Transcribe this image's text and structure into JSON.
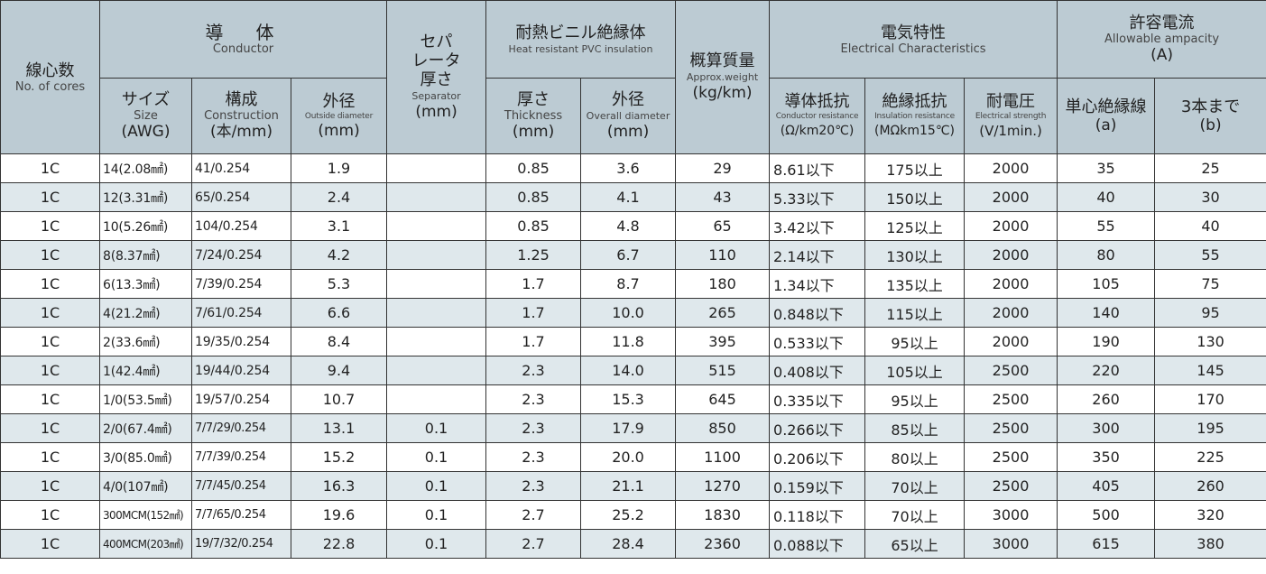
{
  "headers": {
    "cores_jp": "線心数",
    "cores_en": "No. of cores",
    "conductor_jp": "導　体",
    "conductor_en": "Conductor",
    "size_jp": "サイズ",
    "size_en": "Size",
    "size_unit": "(AWG)",
    "construction_jp": "構成",
    "construction_en": "Construction",
    "construction_unit": "(本/mm)",
    "outside_diameter_jp": "外径",
    "outside_diameter_en": "Outside diameter",
    "outside_diameter_unit": "(mm)",
    "separator_jp_1": "セパ",
    "separator_jp_2": "レータ",
    "separator_jp_3": "厚さ",
    "separator_en": "Separator",
    "separator_unit": "(mm)",
    "insulation_jp": "耐熱ビニル絶縁体",
    "insulation_en": "Heat resistant PVC insulation",
    "thickness_jp": "厚さ",
    "thickness_en": "Thickness",
    "thickness_unit": "(mm)",
    "overall_diameter_jp": "外径",
    "overall_diameter_en": "Overall diameter",
    "overall_diameter_unit": "(mm)",
    "weight_jp": "概算質量",
    "weight_en": "Approx.weight",
    "weight_unit": "(kg/km)",
    "electrical_jp": "電気特性",
    "electrical_en": "Electrical Characteristics",
    "cond_res_jp": "導体抵抗",
    "cond_res_en": "Conductor resistance",
    "cond_res_unit": "(Ω/km20℃)",
    "ins_res_jp": "絶縁抵抗",
    "ins_res_en": "Insulation resistance",
    "ins_res_unit": "(MΩkm15℃)",
    "strength_jp": "耐電圧",
    "strength_en": "Electrical strength",
    "strength_unit": "(V/1min.)",
    "ampacity_jp": "許容電流",
    "ampacity_en": "Allowable ampacity",
    "ampacity_unit": "(A)",
    "single_jp": "単心絶縁線",
    "single_unit": "(a)",
    "upto3_jp": "3本まで",
    "upto3_unit": "(b)"
  },
  "rows": [
    {
      "cores": "1C",
      "size": "14(2.08㎟)",
      "construction": "41/0.254",
      "od": "1.9",
      "separator": "",
      "thickness": "0.85",
      "overall": "3.6",
      "weight": "29",
      "cond_res": "8.61以下",
      "ins_res": "175以上",
      "strength": "2000",
      "amp_a": "35",
      "amp_b": "25"
    },
    {
      "cores": "1C",
      "size": "12(3.31㎟)",
      "construction": "65/0.254",
      "od": "2.4",
      "separator": "",
      "thickness": "0.85",
      "overall": "4.1",
      "weight": "43",
      "cond_res": "5.33以下",
      "ins_res": "150以上",
      "strength": "2000",
      "amp_a": "40",
      "amp_b": "30"
    },
    {
      "cores": "1C",
      "size": "10(5.26㎟)",
      "construction": "104/0.254",
      "od": "3.1",
      "separator": "",
      "thickness": "0.85",
      "overall": "4.8",
      "weight": "65",
      "cond_res": "3.42以下",
      "ins_res": "125以上",
      "strength": "2000",
      "amp_a": "55",
      "amp_b": "40"
    },
    {
      "cores": "1C",
      "size": "8(8.37㎟)",
      "construction": "7/24/0.254",
      "od": "4.2",
      "separator": "",
      "thickness": "1.25",
      "overall": "6.7",
      "weight": "110",
      "cond_res": "2.14以下",
      "ins_res": "130以上",
      "strength": "2000",
      "amp_a": "80",
      "amp_b": "55"
    },
    {
      "cores": "1C",
      "size": "6(13.3㎟)",
      "construction": "7/39/0.254",
      "od": "5.3",
      "separator": "",
      "thickness": "1.7",
      "overall": "8.7",
      "weight": "180",
      "cond_res": "1.34以下",
      "ins_res": "135以上",
      "strength": "2000",
      "amp_a": "105",
      "amp_b": "75"
    },
    {
      "cores": "1C",
      "size": "4(21.2㎟)",
      "construction": "7/61/0.254",
      "od": "6.6",
      "separator": "",
      "thickness": "1.7",
      "overall": "10.0",
      "weight": "265",
      "cond_res": "0.848以下",
      "ins_res": "115以上",
      "strength": "2000",
      "amp_a": "140",
      "amp_b": "95"
    },
    {
      "cores": "1C",
      "size": "2(33.6㎟)",
      "construction": "19/35/0.254",
      "od": "8.4",
      "separator": "",
      "thickness": "1.7",
      "overall": "11.8",
      "weight": "395",
      "cond_res": "0.533以下",
      "ins_res": "95以上",
      "strength": "2000",
      "amp_a": "190",
      "amp_b": "130"
    },
    {
      "cores": "1C",
      "size": "1(42.4㎟)",
      "construction": "19/44/0.254",
      "od": "9.4",
      "separator": "",
      "thickness": "2.3",
      "overall": "14.0",
      "weight": "515",
      "cond_res": "0.408以下",
      "ins_res": "105以上",
      "strength": "2500",
      "amp_a": "220",
      "amp_b": "145"
    },
    {
      "cores": "1C",
      "size": "1/0(53.5㎟)",
      "construction": "19/57/0.254",
      "od": "10.7",
      "separator": "",
      "thickness": "2.3",
      "overall": "15.3",
      "weight": "645",
      "cond_res": "0.335以下",
      "ins_res": "95以上",
      "strength": "2500",
      "amp_a": "260",
      "amp_b": "170"
    },
    {
      "cores": "1C",
      "size": "2/0(67.4㎟)",
      "construction": "7/7/29/0.254",
      "od": "13.1",
      "separator": "0.1",
      "thickness": "2.3",
      "overall": "17.9",
      "weight": "850",
      "cond_res": "0.266以下",
      "ins_res": "85以上",
      "strength": "2500",
      "amp_a": "300",
      "amp_b": "195"
    },
    {
      "cores": "1C",
      "size": "3/0(85.0㎟)",
      "construction": "7/7/39/0.254",
      "od": "15.2",
      "separator": "0.1",
      "thickness": "2.3",
      "overall": "20.0",
      "weight": "1100",
      "cond_res": "0.206以下",
      "ins_res": "80以上",
      "strength": "2500",
      "amp_a": "350",
      "amp_b": "225"
    },
    {
      "cores": "1C",
      "size": "4/0(107㎟)",
      "construction": "7/7/45/0.254",
      "od": "16.3",
      "separator": "0.1",
      "thickness": "2.3",
      "overall": "21.1",
      "weight": "1270",
      "cond_res": "0.159以下",
      "ins_res": "70以上",
      "strength": "2500",
      "amp_a": "405",
      "amp_b": "260"
    },
    {
      "cores": "1C",
      "size": "300MCM(152㎟)",
      "construction": "7/7/65/0.254",
      "od": "19.6",
      "separator": "0.1",
      "thickness": "2.7",
      "overall": "25.2",
      "weight": "1830",
      "cond_res": "0.118以下",
      "ins_res": "70以上",
      "strength": "3000",
      "amp_a": "500",
      "amp_b": "320"
    },
    {
      "cores": "1C",
      "size": "400MCM(203㎟)",
      "construction": "19/7/32/0.254",
      "od": "22.8",
      "separator": "0.1",
      "thickness": "2.7",
      "overall": "28.4",
      "weight": "2360",
      "cond_res": "0.088以下",
      "ins_res": "65以上",
      "strength": "3000",
      "amp_a": "615",
      "amp_b": "380"
    }
  ]
}
